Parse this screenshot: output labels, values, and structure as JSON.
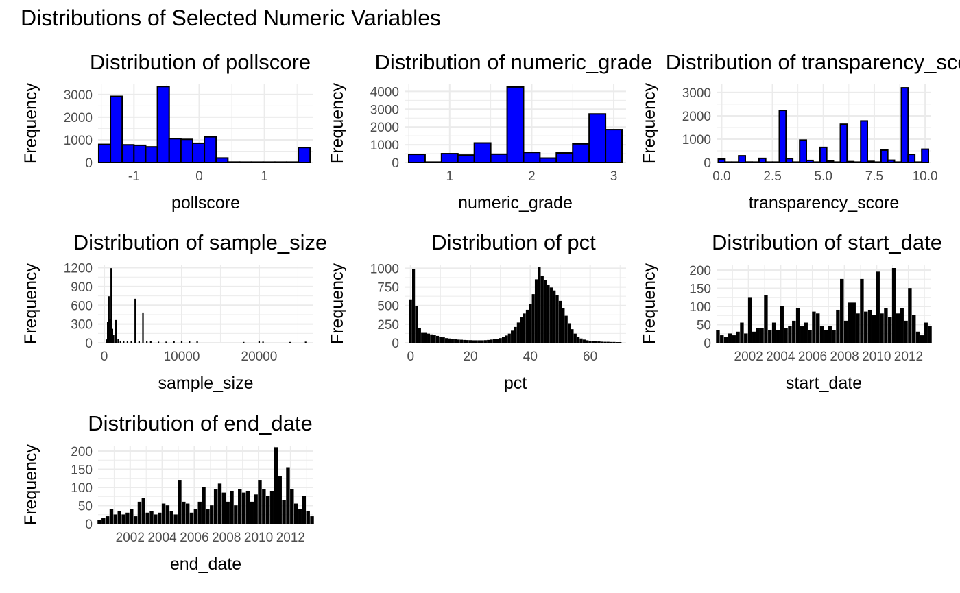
{
  "figure_title": "Distributions of Selected Numeric Variables",
  "colors": {
    "blue_fill": "#0000ff",
    "black_fill": "#000000",
    "bar_outline": "#000000",
    "grid": "#ebebeb",
    "tick_text": "#4d4d4d"
  },
  "chart_data": [
    {
      "type": "bar",
      "panel": "pollscore",
      "title": "Distribution of pollscore",
      "xlabel": "pollscore",
      "ylabel": "Frequency",
      "fill": "blue_fill",
      "xlim": [
        -1.55,
        1.75
      ],
      "ylim": [
        0,
        3450
      ],
      "x": [
        -1.45,
        -1.27,
        -1.09,
        -0.91,
        -0.73,
        -0.55,
        -0.37,
        -0.19,
        -0.01,
        0.17,
        0.35,
        0.53,
        0.71,
        0.89,
        1.07,
        1.25,
        1.43,
        1.61
      ],
      "values": [
        800,
        2920,
        780,
        760,
        690,
        3350,
        1050,
        1020,
        850,
        1130,
        200,
        20,
        10,
        5,
        5,
        5,
        5,
        660
      ],
      "xticks": [
        -1,
        0,
        1
      ],
      "xticklabels": [
        "-1",
        "0",
        "1"
      ],
      "yticks": [
        0,
        1000,
        2000,
        3000
      ],
      "yticklabels": [
        "0",
        "1000",
        "2000",
        "3000"
      ]
    },
    {
      "type": "bar",
      "panel": "numeric_grade",
      "title": "Distribution of numeric_grade",
      "xlabel": "numeric_grade",
      "ylabel": "Frequency",
      "fill": "blue_fill",
      "xlim": [
        0.45,
        3.15
      ],
      "ylim": [
        0,
        4400
      ],
      "x": [
        0.6,
        0.8,
        1.0,
        1.2,
        1.4,
        1.6,
        1.8,
        2.0,
        2.2,
        2.4,
        2.6,
        2.8,
        3.0
      ],
      "values": [
        460,
        20,
        500,
        420,
        1100,
        470,
        4250,
        570,
        250,
        540,
        1050,
        2730,
        1850
      ],
      "xticks": [
        1,
        2,
        3
      ],
      "xticklabels": [
        "1",
        "2",
        "3"
      ],
      "yticks": [
        0,
        1000,
        2000,
        3000,
        4000
      ],
      "yticklabels": [
        "0",
        "1000",
        "2000",
        "3000",
        "4000"
      ]
    },
    {
      "type": "bar",
      "panel": "transparency_score",
      "title": "Distribution of transparency_score",
      "xlabel": "transparency_score",
      "ylabel": "Frequency",
      "fill": "blue_fill",
      "xlim": [
        -0.25,
        10.3
      ],
      "ylim": [
        0,
        3350
      ],
      "x": [
        0.0,
        0.33,
        0.67,
        1.0,
        1.33,
        1.67,
        2.0,
        2.33,
        2.67,
        3.0,
        3.33,
        3.67,
        4.0,
        4.33,
        4.67,
        5.0,
        5.33,
        5.67,
        6.0,
        6.33,
        6.67,
        7.0,
        7.33,
        7.67,
        8.0,
        8.33,
        8.67,
        9.0,
        9.33,
        9.67,
        10.0
      ],
      "values": [
        150,
        10,
        10,
        290,
        20,
        10,
        180,
        10,
        10,
        2230,
        170,
        10,
        960,
        90,
        10,
        650,
        60,
        10,
        1640,
        40,
        10,
        1780,
        50,
        10,
        530,
        100,
        10,
        3200,
        350,
        10,
        570
      ],
      "xticks": [
        0,
        2.5,
        5,
        7.5,
        10
      ],
      "xticklabels": [
        "0.0",
        "2.5",
        "5.0",
        "7.5",
        "10.0"
      ],
      "yticks": [
        0,
        1000,
        2000,
        3000
      ],
      "yticklabels": [
        "0",
        "1000",
        "2000",
        "3000"
      ]
    },
    {
      "type": "bar",
      "panel": "sample_size",
      "title": "Distribution of sample_size",
      "xlabel": "sample_size",
      "ylabel": "Frequency",
      "fill": "black_fill",
      "xlim": [
        -800,
        27000
      ],
      "ylim": [
        0,
        1250
      ],
      "x": [
        300,
        450,
        600,
        750,
        900,
        1050,
        1200,
        1500,
        1800,
        2100,
        2500,
        3000,
        3500,
        4000,
        4500,
        5000,
        5500,
        6000,
        7000,
        8000,
        9000,
        10000,
        11000,
        12000,
        18000,
        20000,
        20500,
        24000,
        26000
      ],
      "values": [
        50,
        330,
        740,
        380,
        1190,
        220,
        120,
        360,
        60,
        30,
        30,
        25,
        20,
        700,
        20,
        480,
        20,
        20,
        15,
        15,
        20,
        20,
        20,
        20,
        10,
        20,
        15,
        10,
        15
      ],
      "xticks": [
        0,
        10000,
        20000
      ],
      "xticklabels": [
        "0",
        "10000",
        "20000"
      ],
      "yticks": [
        0,
        300,
        600,
        900,
        1200
      ],
      "yticklabels": [
        "0",
        "300",
        "600",
        "900",
        "1200"
      ]
    },
    {
      "type": "bar",
      "panel": "pct",
      "title": "Distribution of pct",
      "xlabel": "pct",
      "ylabel": "Frequency",
      "fill": "black_fill",
      "xlim": [
        -2,
        72
      ],
      "ylim": [
        0,
        1050
      ],
      "x": [
        0,
        1,
        2,
        3,
        4,
        5,
        6,
        7,
        8,
        9,
        10,
        11,
        12,
        13,
        14,
        15,
        16,
        17,
        18,
        19,
        20,
        21,
        22,
        23,
        24,
        25,
        26,
        27,
        28,
        29,
        30,
        31,
        32,
        33,
        34,
        35,
        36,
        37,
        38,
        39,
        40,
        41,
        42,
        43,
        44,
        45,
        46,
        47,
        48,
        49,
        50,
        51,
        52,
        53,
        54,
        55,
        56,
        57,
        58,
        59,
        60,
        61,
        62,
        63,
        64,
        65,
        66,
        67,
        68,
        69,
        70
      ],
      "values": [
        580,
        990,
        490,
        200,
        130,
        130,
        120,
        110,
        100,
        90,
        80,
        70,
        60,
        55,
        50,
        45,
        40,
        38,
        35,
        33,
        32,
        30,
        30,
        30,
        30,
        32,
        35,
        40,
        45,
        50,
        60,
        75,
        95,
        120,
        160,
        210,
        270,
        340,
        390,
        440,
        520,
        650,
        850,
        1010,
        900,
        840,
        780,
        740,
        700,
        640,
        560,
        460,
        360,
        260,
        180,
        120,
        80,
        55,
        40,
        30,
        25,
        20,
        18,
        15,
        12,
        10,
        10,
        8,
        8,
        6,
        6
      ],
      "xticks": [
        0,
        20,
        40,
        60
      ],
      "xticklabels": [
        "0",
        "20",
        "40",
        "60"
      ],
      "yticks": [
        0,
        250,
        500,
        750,
        1000
      ],
      "yticklabels": [
        "0",
        "250",
        "500",
        "750",
        "1000"
      ]
    },
    {
      "type": "bar",
      "panel": "start_date",
      "title": "Distribution of start_date",
      "xlabel": "start_date",
      "ylabel": "Frequency",
      "fill": "black_fill",
      "xlim": [
        "2000-01",
        "2013-06"
      ],
      "ylim": [
        0,
        215
      ],
      "x": [
        "2000-02",
        "2000-05",
        "2000-08",
        "2000-11",
        "2001-02",
        "2001-05",
        "2001-08",
        "2001-11",
        "2002-02",
        "2002-05",
        "2002-08",
        "2002-11",
        "2003-02",
        "2003-05",
        "2003-08",
        "2003-11",
        "2004-02",
        "2004-05",
        "2004-08",
        "2004-11",
        "2005-02",
        "2005-05",
        "2005-08",
        "2005-11",
        "2006-02",
        "2006-05",
        "2006-08",
        "2006-11",
        "2007-02",
        "2007-05",
        "2007-08",
        "2007-11",
        "2008-02",
        "2008-05",
        "2008-08",
        "2008-11",
        "2009-02",
        "2009-05",
        "2009-08",
        "2009-11",
        "2010-02",
        "2010-05",
        "2010-08",
        "2010-11",
        "2011-02",
        "2011-05",
        "2011-08",
        "2011-11",
        "2012-02",
        "2012-05",
        "2012-08",
        "2012-11",
        "2013-02",
        "2013-05"
      ],
      "values": [
        35,
        20,
        15,
        25,
        20,
        30,
        55,
        25,
        125,
        30,
        40,
        40,
        130,
        35,
        55,
        35,
        100,
        40,
        45,
        60,
        95,
        45,
        55,
        35,
        85,
        80,
        45,
        35,
        45,
        35,
        90,
        175,
        60,
        110,
        110,
        80,
        175,
        85,
        90,
        75,
        195,
        80,
        95,
        70,
        205,
        80,
        95,
        60,
        150,
        75,
        30,
        20,
        55,
        45
      ],
      "xticks": [
        "2002-01",
        "2004-01",
        "2006-01",
        "2008-01",
        "2010-01",
        "2012-01"
      ],
      "xticklabels": [
        "2002",
        "2004",
        "2006",
        "2008",
        "2010",
        "2012"
      ],
      "yticks": [
        0,
        50,
        100,
        150,
        200
      ],
      "yticklabels": [
        "0",
        "50",
        "100",
        "150",
        "200"
      ]
    },
    {
      "type": "bar",
      "panel": "end_date",
      "title": "Distribution of end_date",
      "xlabel": "end_date",
      "ylabel": "Frequency",
      "fill": "black_fill",
      "xlim": [
        "2000-01",
        "2013-06"
      ],
      "ylim": [
        0,
        215
      ],
      "x": [
        "2000-02",
        "2000-05",
        "2000-08",
        "2000-11",
        "2001-02",
        "2001-05",
        "2001-08",
        "2001-11",
        "2002-02",
        "2002-05",
        "2002-08",
        "2002-11",
        "2003-02",
        "2003-05",
        "2003-08",
        "2003-11",
        "2004-02",
        "2004-05",
        "2004-08",
        "2004-11",
        "2005-02",
        "2005-05",
        "2005-08",
        "2005-11",
        "2006-02",
        "2006-05",
        "2006-08",
        "2006-11",
        "2007-02",
        "2007-05",
        "2007-08",
        "2007-11",
        "2008-02",
        "2008-05",
        "2008-08",
        "2008-11",
        "2009-02",
        "2009-05",
        "2009-08",
        "2009-11",
        "2010-02",
        "2010-05",
        "2010-08",
        "2010-11",
        "2011-02",
        "2011-05",
        "2011-08",
        "2011-11",
        "2012-02",
        "2012-05",
        "2012-08",
        "2012-11",
        "2013-02",
        "2013-05"
      ],
      "values": [
        10,
        15,
        20,
        40,
        25,
        35,
        25,
        30,
        40,
        20,
        60,
        70,
        30,
        35,
        25,
        30,
        55,
        50,
        35,
        25,
        120,
        60,
        55,
        30,
        40,
        60,
        100,
        40,
        50,
        95,
        110,
        85,
        60,
        90,
        50,
        95,
        85,
        90,
        60,
        80,
        120,
        95,
        75,
        90,
        210,
        130,
        65,
        155,
        95,
        55,
        40,
        75,
        35,
        20
      ],
      "xticks": [
        "2002-01",
        "2004-01",
        "2006-01",
        "2008-01",
        "2010-01",
        "2012-01"
      ],
      "xticklabels": [
        "2002",
        "2004",
        "2006",
        "2008",
        "2010",
        "2012"
      ],
      "yticks": [
        0,
        50,
        100,
        150,
        200
      ],
      "yticklabels": [
        "0",
        "50",
        "100",
        "150",
        "200"
      ]
    }
  ]
}
